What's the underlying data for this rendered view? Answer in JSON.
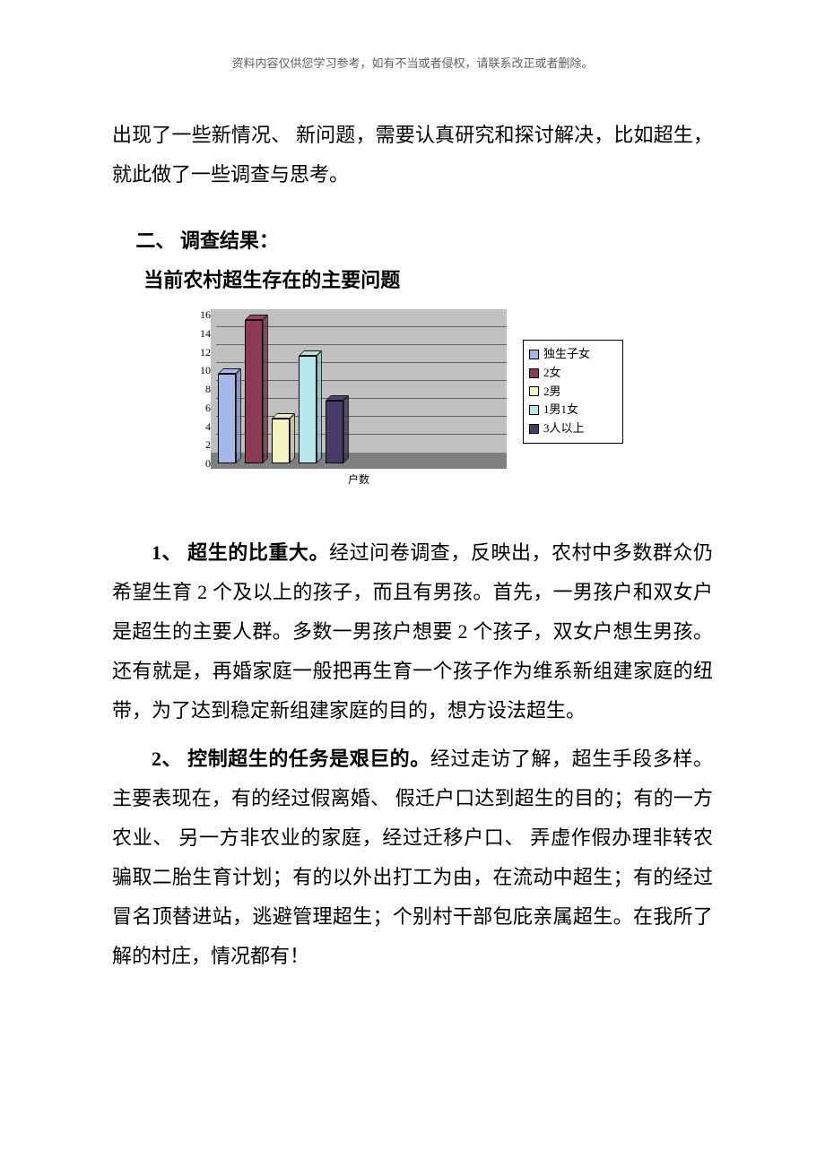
{
  "header_note": "资料内容仅供您学习参考，如有不当或者侵权，请联系改正或者删除。",
  "intro_para": "出现了一些新情况、 新问题，需要认真研究和探讨解决，比如超生，就此做了一些调查与思考。",
  "section2_head": "二、 调查结果：",
  "section2_sub": "当前农村超生存在的主要问题",
  "chart": {
    "type": "3d-bar",
    "x_label": "户数",
    "y_ticks": [
      "0",
      "2",
      "4",
      "6",
      "8",
      "10",
      "12",
      "14",
      "16"
    ],
    "y_max": 16,
    "plot_bg": "#c0c0c0",
    "floor_color": "#808080",
    "series": [
      {
        "label": "独生子女",
        "value": 10,
        "color": "#a6b8e8",
        "dark": "#7a8cc0"
      },
      {
        "label": "2女",
        "value": 16,
        "color": "#8e3a52",
        "dark": "#6a2a3c"
      },
      {
        "label": "2男",
        "value": 5,
        "color": "#f5f2c4",
        "dark": "#c8c49a"
      },
      {
        "label": "1男1女",
        "value": 12,
        "color": "#b8e8ec",
        "dark": "#8cc0c4"
      },
      {
        "label": "3人以上",
        "value": 7,
        "color": "#4a3a6a",
        "dark": "#352850"
      }
    ]
  },
  "p1_lead": "1、 超生的比重大。",
  "p1_body_a": "经过问卷调查，反映出，农村中多数群众仍希望生育 ",
  "p1_num_a": "2",
  "p1_body_b": " 个及以上的孩子，而且有男孩。首先，一男孩户和双女户是超生的主要人群。多数一男孩户想要 ",
  "p1_num_b": "2",
  "p1_body_c": " 个孩子，双女户想生男孩。还有就是，再婚家庭一般把再生育一个孩子作为维系新组建家庭的纽带，为了达到稳定新组建家庭的目的，想方设法超生。",
  "p2_lead": "2、 控制超生的任务是艰巨的。",
  "p2_body": "经过走访了解，超生手段多样。主要表现在，有的经过假离婚、 假迁户口达到超生的目的；有的一方农业、 另一方非农业的家庭，经过迁移户口、 弄虚作假办理非转农骗取二胎生育计划；有的以外出打工为由，在流动中超生；有的经过冒名顶替进站，逃避管理超生；个别村干部包庇亲属超生。在我所了解的村庄，情况都有！"
}
